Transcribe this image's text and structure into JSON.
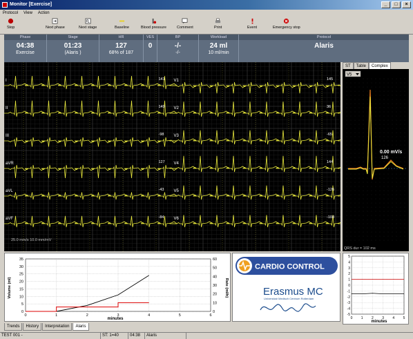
{
  "window": {
    "title": "Monitor [Exercise]"
  },
  "menu": [
    "Protocol",
    "View",
    "Action"
  ],
  "toolbar": [
    {
      "label": "Stop",
      "icon": "stop-icon"
    },
    {
      "label": "Next phase",
      "icon": "next-phase-icon"
    },
    {
      "label": "Next stage",
      "icon": "next-stage-icon"
    },
    {
      "label": "Baseline",
      "icon": "baseline-icon"
    },
    {
      "label": "Blood pressure",
      "icon": "blood-pressure-icon"
    },
    {
      "label": "Comment",
      "icon": "comment-icon"
    },
    {
      "label": "Print",
      "icon": "printer-icon"
    },
    {
      "label": "Event",
      "icon": "event-icon"
    },
    {
      "label": "Emergency stop",
      "icon": "emergency-stop-icon"
    }
  ],
  "info": {
    "phase": {
      "header": "Phase",
      "value": "04:38",
      "sub": "Exercise"
    },
    "stage": {
      "header": "Stage",
      "value": "01:23",
      "sub": "(Alaris   )"
    },
    "hr": {
      "header": "HR",
      "value": "127",
      "sub": "68% of 187"
    },
    "vcs": {
      "header": "VES",
      "value": "0"
    },
    "bp": {
      "header": "BP",
      "value": "-/-",
      "sub": "-/-"
    },
    "workload": {
      "header": "Workload",
      "value": "24 ml",
      "sub": "10 ml/min"
    },
    "protocol": {
      "header": "Protocol",
      "value": "Alaris"
    }
  },
  "ecg": {
    "leads_left": [
      {
        "name": "I",
        "hr": "141"
      },
      {
        "name": "II",
        "hr": "149"
      },
      {
        "name": "III",
        "hr": "-98"
      },
      {
        "name": "aVR",
        "hr": "127"
      },
      {
        "name": "aVL",
        "hr": "-43"
      },
      {
        "name": "aVF",
        "hr": "-84"
      }
    ],
    "leads_right": [
      {
        "name": "V1",
        "hr": "145"
      },
      {
        "name": "V2",
        "hr": "36"
      },
      {
        "name": "V3",
        "hr": "-65"
      },
      {
        "name": "V4",
        "hr": "144"
      },
      {
        "name": "V5",
        "hr": "-126"
      },
      {
        "name": "V6",
        "hr": "-108"
      }
    ],
    "scale": "25.0 mm/s  10.0 mm/mV"
  },
  "right_panel": {
    "tabs": [
      "ST",
      "Table",
      "Complex"
    ],
    "active_tab": "Complex",
    "lead_select": "V5",
    "slope": "0.00 mV/s",
    "hr_mark": "126",
    "qrs": "QRS dur = 102 ms"
  },
  "trend": {
    "xlabel": "minutes",
    "ylabel_left": "Volume (ml)",
    "ylabel_right": "Rate (ml/h)"
  },
  "logo": {
    "brand": "CARDIO CONTROL",
    "institution": "Erasmus MC",
    "institution_sub": "Universitair Medisch Centrum Rotterdam",
    "signature": "Erasmus"
  },
  "small_chart": {
    "xlabel": "minutes"
  },
  "bottom_tabs": [
    "Trends",
    "History",
    "Interpretation",
    "Alaris"
  ],
  "bottom_active": "Alaris",
  "status": {
    "patient": "TEST 001 -",
    "st": "ST: 1=40",
    "time": "04:38",
    "protocol": "Alaris"
  },
  "colors": {
    "trace": "#e8e83c",
    "grid": "#3a3a3a",
    "volume": "#000000",
    "rate": "#dd0000",
    "info_bg": "#5f6d7f"
  },
  "chart_data": [
    {
      "type": "line",
      "x": [
        0,
        1,
        2,
        3,
        4
      ],
      "series": [
        {
          "axis": "left",
          "values": [
            0,
            0,
            4,
            11,
            24
          ]
        },
        {
          "axis": "right",
          "values": [
            0,
            5,
            5,
            10,
            10
          ]
        }
      ],
      "xlabel": "minutes",
      "ylabel": "Volume (ml)",
      "ylabel_right": "Rate (ml/h)",
      "xticks": [
        0,
        1,
        2,
        3,
        4,
        5,
        6
      ],
      "yticks": [
        0,
        5,
        10,
        15,
        20,
        25,
        30,
        35
      ],
      "yticks_right": [
        0,
        10,
        20,
        30,
        40,
        50,
        60
      ],
      "xlim": [
        0,
        6
      ],
      "ylim": [
        0,
        35
      ],
      "ylim_right": [
        0,
        60
      ],
      "grid": true
    },
    {
      "type": "line",
      "x": [
        0,
        1,
        2,
        3,
        4,
        5
      ],
      "series": [
        {
          "values": [
            1,
            1,
            1,
            1,
            1,
            1
          ],
          "color": "#cc0000"
        },
        {
          "values": [
            -1.5,
            -1.5,
            -1.4,
            -1.5,
            -1.5,
            -1.5
          ],
          "color": "#000000"
        }
      ],
      "xlabel": "minutes",
      "xticks": [
        0,
        1,
        2,
        3,
        4,
        5
      ],
      "yticks": [
        5,
        4,
        3,
        2,
        1,
        0,
        -1,
        -2,
        -3,
        -4,
        -5
      ],
      "xlim": [
        0,
        5
      ],
      "ylim": [
        -5,
        5
      ],
      "grid": true
    }
  ]
}
